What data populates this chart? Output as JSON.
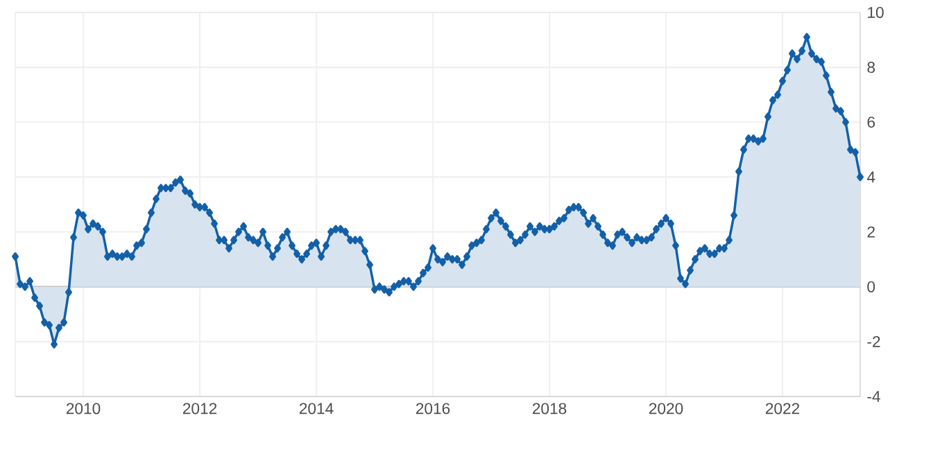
{
  "chart_data": {
    "type": "area",
    "color": "#1360a8",
    "marker": "diamond",
    "grid": true,
    "x": [
      "2008-11",
      "2008-12",
      "2009-01",
      "2009-02",
      "2009-03",
      "2009-04",
      "2009-05",
      "2009-06",
      "2009-07",
      "2009-08",
      "2009-09",
      "2009-10",
      "2009-11",
      "2009-12",
      "2010-01",
      "2010-02",
      "2010-03",
      "2010-04",
      "2010-05",
      "2010-06",
      "2010-07",
      "2010-08",
      "2010-09",
      "2010-10",
      "2010-11",
      "2010-12",
      "2011-01",
      "2011-02",
      "2011-03",
      "2011-04",
      "2011-05",
      "2011-06",
      "2011-07",
      "2011-08",
      "2011-09",
      "2011-10",
      "2011-11",
      "2011-12",
      "2012-01",
      "2012-02",
      "2012-03",
      "2012-04",
      "2012-05",
      "2012-06",
      "2012-07",
      "2012-08",
      "2012-09",
      "2012-10",
      "2012-11",
      "2012-12",
      "2013-01",
      "2013-02",
      "2013-03",
      "2013-04",
      "2013-05",
      "2013-06",
      "2013-07",
      "2013-08",
      "2013-09",
      "2013-10",
      "2013-11",
      "2013-12",
      "2014-01",
      "2014-02",
      "2014-03",
      "2014-04",
      "2014-05",
      "2014-06",
      "2014-07",
      "2014-08",
      "2014-09",
      "2014-10",
      "2014-11",
      "2014-12",
      "2015-01",
      "2015-02",
      "2015-03",
      "2015-04",
      "2015-05",
      "2015-06",
      "2015-07",
      "2015-08",
      "2015-09",
      "2015-10",
      "2015-11",
      "2015-12",
      "2016-01",
      "2016-02",
      "2016-03",
      "2016-04",
      "2016-05",
      "2016-06",
      "2016-07",
      "2016-08",
      "2016-09",
      "2016-10",
      "2016-11",
      "2016-12",
      "2017-01",
      "2017-02",
      "2017-03",
      "2017-04",
      "2017-05",
      "2017-06",
      "2017-07",
      "2017-08",
      "2017-09",
      "2017-10",
      "2017-11",
      "2017-12",
      "2018-01",
      "2018-02",
      "2018-03",
      "2018-04",
      "2018-05",
      "2018-06",
      "2018-07",
      "2018-08",
      "2018-09",
      "2018-10",
      "2018-11",
      "2018-12",
      "2019-01",
      "2019-02",
      "2019-03",
      "2019-04",
      "2019-05",
      "2019-06",
      "2019-07",
      "2019-08",
      "2019-09",
      "2019-10",
      "2019-11",
      "2019-12",
      "2020-01",
      "2020-02",
      "2020-03",
      "2020-04",
      "2020-05",
      "2020-06",
      "2020-07",
      "2020-08",
      "2020-09",
      "2020-10",
      "2020-11",
      "2020-12",
      "2021-01",
      "2021-02",
      "2021-03",
      "2021-04",
      "2021-05",
      "2021-06",
      "2021-07",
      "2021-08",
      "2021-09",
      "2021-10",
      "2021-11",
      "2021-12",
      "2022-01",
      "2022-02",
      "2022-03",
      "2022-04",
      "2022-05",
      "2022-06",
      "2022-07",
      "2022-08",
      "2022-09",
      "2022-10",
      "2022-11",
      "2022-12",
      "2023-01",
      "2023-02",
      "2023-03",
      "2023-04",
      "2023-05"
    ],
    "values": [
      1.1,
      0.1,
      0.0,
      0.2,
      -0.4,
      -0.7,
      -1.3,
      -1.4,
      -2.1,
      -1.5,
      -1.3,
      -0.2,
      1.8,
      2.7,
      2.6,
      2.1,
      2.3,
      2.2,
      2.0,
      1.1,
      1.2,
      1.1,
      1.1,
      1.2,
      1.1,
      1.5,
      1.6,
      2.1,
      2.7,
      3.2,
      3.6,
      3.6,
      3.6,
      3.8,
      3.9,
      3.5,
      3.4,
      3.0,
      2.9,
      2.9,
      2.7,
      2.3,
      1.7,
      1.7,
      1.4,
      1.7,
      2.0,
      2.2,
      1.8,
      1.7,
      1.6,
      2.0,
      1.5,
      1.1,
      1.4,
      1.8,
      2.0,
      1.5,
      1.2,
      1.0,
      1.2,
      1.5,
      1.6,
      1.1,
      1.5,
      2.0,
      2.1,
      2.1,
      2.0,
      1.7,
      1.7,
      1.7,
      1.3,
      0.8,
      -0.1,
      0.0,
      -0.1,
      -0.2,
      0.0,
      0.1,
      0.2,
      0.2,
      0.0,
      0.2,
      0.5,
      0.7,
      1.4,
      1.0,
      0.9,
      1.1,
      1.0,
      1.0,
      0.8,
      1.1,
      1.5,
      1.6,
      1.7,
      2.1,
      2.5,
      2.7,
      2.4,
      2.2,
      1.9,
      1.6,
      1.7,
      1.9,
      2.2,
      2.0,
      2.2,
      2.1,
      2.1,
      2.2,
      2.4,
      2.5,
      2.8,
      2.9,
      2.9,
      2.7,
      2.3,
      2.5,
      2.2,
      1.9,
      1.6,
      1.5,
      1.9,
      2.0,
      1.8,
      1.6,
      1.8,
      1.7,
      1.7,
      1.8,
      2.1,
      2.3,
      2.5,
      2.3,
      1.5,
      0.3,
      0.1,
      0.6,
      1.0,
      1.3,
      1.4,
      1.2,
      1.2,
      1.4,
      1.4,
      1.7,
      2.6,
      4.2,
      5.0,
      5.4,
      5.4,
      5.3,
      5.4,
      6.2,
      6.8,
      7.0,
      7.5,
      7.9,
      8.5,
      8.3,
      8.6,
      9.1,
      8.5,
      8.3,
      8.2,
      7.7,
      7.1,
      6.5,
      6.4,
      6.0,
      5.0,
      4.9,
      4.0
    ],
    "xlim": [
      "2008-11",
      "2023-05"
    ],
    "xticks": [
      "2010",
      "2012",
      "2014",
      "2016",
      "2018",
      "2020",
      "2022"
    ],
    "ylim": [
      -4,
      10
    ],
    "yticks": [
      -4,
      -2,
      0,
      2,
      4,
      6,
      8,
      10
    ]
  }
}
